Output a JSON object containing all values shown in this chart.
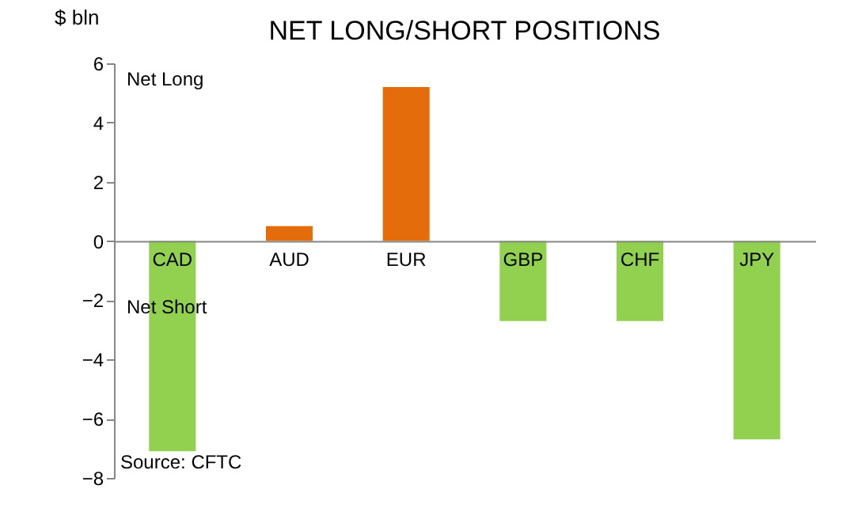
{
  "chart_data": {
    "type": "bar",
    "title": "NET LONG/SHORT POSITIONS",
    "ylabel": "$ bln",
    "categories": [
      "CAD",
      "AUD",
      "EUR",
      "GBP",
      "CHF",
      "JPY"
    ],
    "values": [
      -7.1,
      0.5,
      5.2,
      -2.7,
      -2.7,
      -6.7
    ],
    "colors": [
      "#92d050",
      "#e46c0a",
      "#e46c0a",
      "#92d050",
      "#92d050",
      "#92d050"
    ],
    "ylim": [
      -8,
      6
    ],
    "yticks": [
      -8,
      -6,
      -4,
      -2,
      0,
      2,
      4,
      6
    ],
    "annotations": [
      "Net Long",
      "Net Short",
      "Source: CFTC"
    ]
  }
}
